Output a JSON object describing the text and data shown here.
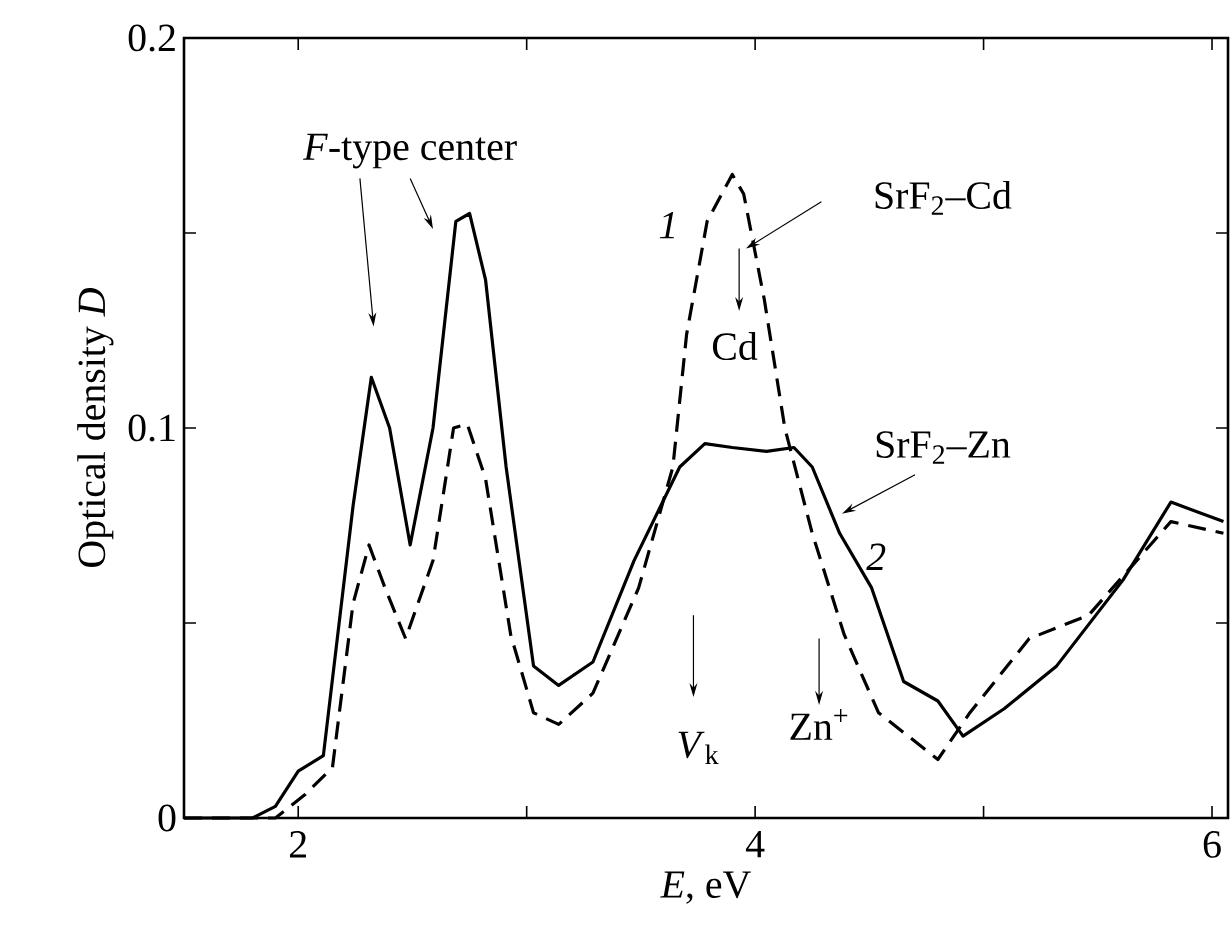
{
  "chart_data": {
    "type": "line",
    "xlabel": "*E*, eV",
    "ylabel": "Optical density *D*",
    "xlim": [
      1.5,
      6.07
    ],
    "ylim": [
      0,
      0.2
    ],
    "xticks": [
      2,
      {
        "value": 3,
        "label": null
      },
      4,
      {
        "value": 5,
        "label": null
      },
      6
    ],
    "yticks": [
      0,
      {
        "value": 0.05,
        "label": null
      },
      0.1,
      {
        "value": 0.15,
        "label": null
      },
      0.2
    ],
    "marker": "none",
    "series": [
      {
        "color": "#000000",
        "line_style": "dashed",
        "x": [
          1.5,
          1.9,
          2.03,
          2.15,
          2.24,
          2.31,
          2.38,
          2.47,
          2.59,
          2.68,
          2.74,
          2.82,
          2.93,
          3.03,
          3.14,
          3.29,
          3.49,
          3.64,
          3.7,
          3.79,
          3.9,
          3.95,
          4.04,
          4.13,
          4.25,
          4.39,
          4.54,
          4.8,
          4.94,
          5.2,
          5.46,
          5.82,
          6.05
        ],
        "values": [
          0,
          0,
          0.006,
          0.013,
          0.055,
          0.07,
          0.059,
          0.046,
          0.066,
          0.1,
          0.101,
          0.087,
          0.047,
          0.027,
          0.024,
          0.032,
          0.059,
          0.09,
          0.124,
          0.153,
          0.165,
          0.16,
          0.133,
          0.1,
          0.073,
          0.047,
          0.027,
          0.015,
          0.027,
          0.046,
          0.052,
          0.076,
          0.073
        ]
      },
      {
        "color": "#000000",
        "line_style": "solid",
        "x": [
          1.5,
          1.8,
          1.9,
          2.0,
          2.11,
          2.24,
          2.32,
          2.4,
          2.49,
          2.59,
          2.69,
          2.75,
          2.82,
          2.91,
          3.03,
          3.14,
          3.29,
          3.47,
          3.67,
          3.78,
          3.9,
          4.05,
          4.17,
          4.25,
          4.37,
          4.51,
          4.65,
          4.8,
          4.91,
          5.09,
          5.32,
          5.61,
          5.82,
          6.05
        ],
        "values": [
          0,
          0,
          0.003,
          0.012,
          0.016,
          0.08,
          0.113,
          0.1,
          0.07,
          0.1,
          0.153,
          0.155,
          0.138,
          0.09,
          0.039,
          0.034,
          0.04,
          0.066,
          0.09,
          0.096,
          0.095,
          0.094,
          0.095,
          0.09,
          0.073,
          0.059,
          0.035,
          0.03,
          0.021,
          0.028,
          0.039,
          0.061,
          0.081,
          0.076
        ]
      }
    ],
    "annotations": [
      "*F*-type center",
      "*1*",
      "SrF$_{2}$–Cd",
      "Cd",
      "SrF$_{2}$–Zn",
      "*2*",
      "*V*$_{k}$",
      "Zn$^{+}$"
    ]
  }
}
